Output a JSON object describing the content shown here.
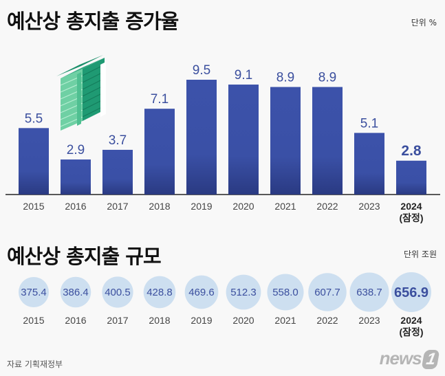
{
  "growth": {
    "title": "예산상 총지출 증가율",
    "unit": "단위 %"
  },
  "size": {
    "title": "예산상 총지출 규모",
    "unit": "단위 조원"
  },
  "footer": {
    "source": "자료 기획재정부",
    "logo_text": "news",
    "logo_mark": "1"
  },
  "colors": {
    "bar": "#3a50a6",
    "bar_dark": "#2b3c86",
    "circle": "#cddff0",
    "value_text": "#3b4f9e"
  },
  "chart_data": [
    {
      "type": "bar",
      "title": "예산상 총지출 증가율",
      "ylabel": "단위 %",
      "categories": [
        "2015",
        "2016",
        "2017",
        "2018",
        "2019",
        "2020",
        "2021",
        "2022",
        "2023",
        "2024"
      ],
      "category_sublabels": [
        "",
        "",
        "",
        "",
        "",
        "",
        "",
        "",
        "",
        "(잠정)"
      ],
      "values": [
        5.5,
        2.9,
        3.7,
        7.1,
        9.5,
        9.1,
        8.9,
        8.9,
        5.1,
        2.8
      ],
      "value_labels": [
        "5.5",
        "2.9",
        "3.7",
        "7.1",
        "9.5",
        "9.1",
        "8.9",
        "8.9",
        "5.1",
        "2.8"
      ],
      "highlight_index": 9,
      "ylim": [
        0,
        10
      ],
      "grid": false,
      "legend": "none"
    },
    {
      "type": "table",
      "title": "예산상 총지출 규모",
      "ylabel": "단위 조원",
      "categories": [
        "2015",
        "2016",
        "2017",
        "2018",
        "2019",
        "2020",
        "2021",
        "2022",
        "2023",
        "2024"
      ],
      "category_sublabels": [
        "",
        "",
        "",
        "",
        "",
        "",
        "",
        "",
        "",
        "(잠정)"
      ],
      "values": [
        375.4,
        386.4,
        400.5,
        428.8,
        469.6,
        512.3,
        558.0,
        607.7,
        638.7,
        656.9
      ],
      "value_labels": [
        "375.4",
        "386.4",
        "400.5",
        "428.8",
        "469.6",
        "512.3",
        "558.0",
        "607.7",
        "638.7",
        "656.9"
      ],
      "highlight_index": 9
    }
  ]
}
